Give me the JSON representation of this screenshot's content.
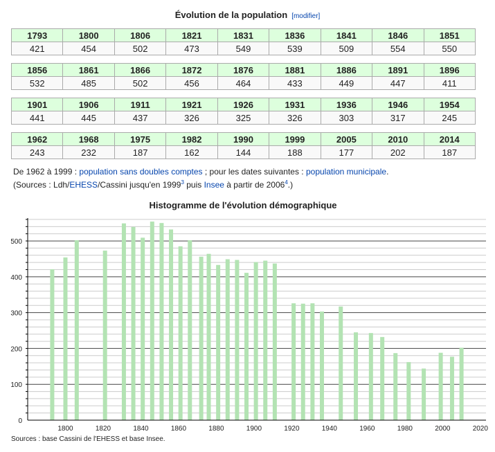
{
  "header": {
    "title": "Évolution de la population",
    "edit_link": "[modifier]"
  },
  "tables": [
    {
      "years": [
        "1793",
        "1800",
        "1806",
        "1821",
        "1831",
        "1836",
        "1841",
        "1846",
        "1851"
      ],
      "values": [
        "421",
        "454",
        "502",
        "473",
        "549",
        "539",
        "509",
        "554",
        "550"
      ]
    },
    {
      "years": [
        "1856",
        "1861",
        "1866",
        "1872",
        "1876",
        "1881",
        "1886",
        "1891",
        "1896"
      ],
      "values": [
        "532",
        "485",
        "502",
        "456",
        "464",
        "433",
        "449",
        "447",
        "411"
      ]
    },
    {
      "years": [
        "1901",
        "1906",
        "1911",
        "1921",
        "1926",
        "1931",
        "1936",
        "1946",
        "1954"
      ],
      "values": [
        "441",
        "445",
        "437",
        "326",
        "325",
        "326",
        "303",
        "317",
        "245"
      ]
    },
    {
      "years": [
        "1962",
        "1968",
        "1975",
        "1982",
        "1990",
        "1999",
        "2005",
        "2010",
        "2014"
      ],
      "values": [
        "243",
        "232",
        "187",
        "162",
        "144",
        "188",
        "177",
        "202",
        "187"
      ]
    }
  ],
  "notes": {
    "line1_a": "De 1962 à 1999 : ",
    "line1_link1": "population sans doubles comptes",
    "line1_b": " ; pour les dates suivantes : ",
    "line1_link2": "population municipale",
    "line1_c": ".",
    "line2_a": "(Sources : Ldh/",
    "line2_link1": "EHESS",
    "line2_b": "/Cassini jusqu'en 1999",
    "sup1": "3",
    "line2_c": " puis ",
    "line2_link2": "Insee",
    "line2_d": " à partir de 2006",
    "sup2": "4",
    "line2_e": ".)"
  },
  "chart_data": {
    "type": "bar",
    "title": "Histogramme de l'évolution démographique",
    "x": [
      1793,
      1800,
      1806,
      1821,
      1831,
      1836,
      1841,
      1846,
      1851,
      1856,
      1861,
      1866,
      1872,
      1876,
      1881,
      1886,
      1891,
      1896,
      1901,
      1906,
      1911,
      1921,
      1926,
      1931,
      1936,
      1946,
      1954,
      1962,
      1968,
      1975,
      1982,
      1990,
      1999,
      2005,
      2010
    ],
    "values": [
      421,
      454,
      502,
      473,
      549,
      539,
      509,
      554,
      550,
      532,
      485,
      502,
      456,
      464,
      433,
      449,
      447,
      411,
      441,
      445,
      437,
      326,
      325,
      326,
      303,
      317,
      245,
      243,
      232,
      187,
      162,
      144,
      188,
      177,
      202
    ],
    "xlim": [
      1780,
      2023
    ],
    "ylim": [
      0,
      560
    ],
    "xticks": [
      1800,
      1820,
      1840,
      1860,
      1880,
      1900,
      1920,
      1940,
      1960,
      1980,
      2000,
      2020
    ],
    "yticks": [
      0,
      100,
      200,
      300,
      400,
      500
    ],
    "grid": true,
    "bar_color": "#b3e3b3",
    "source": "Sources : base Cassini de l'EHESS et base Insee."
  }
}
